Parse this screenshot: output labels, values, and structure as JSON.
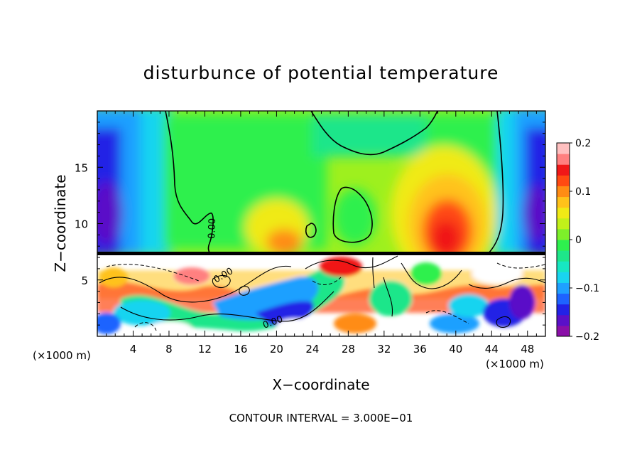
{
  "chart_data": {
    "type": "heatmap",
    "title": "disturbunce of potential temperature",
    "xlabel": "X−coordinate",
    "ylabel": "Z−coordinate",
    "x_unit_left": "(×1000 m)",
    "x_unit_right": "(×1000 m)",
    "xlim": [
      0,
      50
    ],
    "ylim": [
      0,
      20
    ],
    "x_ticks": [
      4,
      8,
      12,
      16,
      20,
      24,
      28,
      32,
      36,
      40,
      44,
      48
    ],
    "y_ticks": [
      5,
      10,
      15
    ],
    "colorbar": {
      "range": [
        -0.2,
        0.2
      ],
      "ticks": [
        {
          "value": 0.2,
          "label": "0.2"
        },
        {
          "value": 0.1,
          "label": "0.1"
        },
        {
          "value": 0,
          "label": "0"
        },
        {
          "value": -0.1,
          "label": "−0.1"
        },
        {
          "value": -0.2,
          "label": "−0.2"
        }
      ],
      "colors": [
        "#8a0fa8",
        "#5a10c8",
        "#2222e6",
        "#1e63ff",
        "#1fa0ff",
        "#19d4f0",
        "#17e6c2",
        "#1ee68a",
        "#2ef04e",
        "#7df02a",
        "#c2f01a",
        "#f0ea16",
        "#ffc21a",
        "#ff8c14",
        "#ff4a12",
        "#f01818",
        "#ff8080",
        "#ffc0c0"
      ]
    },
    "contour_labels": [
      "0.00",
      "0.00",
      "0.00"
    ],
    "annotation": "CONTOUR INTERVAL = 3.000E−01",
    "grid": false
  }
}
